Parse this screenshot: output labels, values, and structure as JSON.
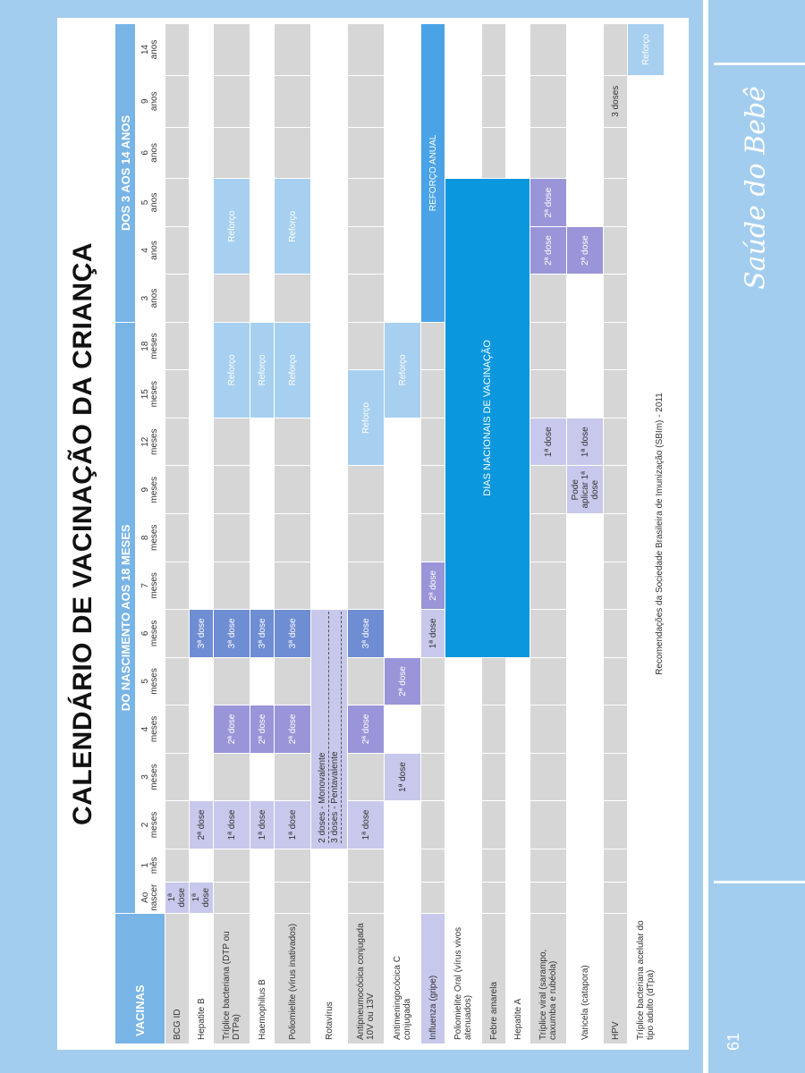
{
  "page": {
    "title": "CALENDÁRIO DE VACINAÇÃO DA CRIANÇA",
    "brand": "Saúde do Bebê",
    "page_number": "61",
    "credit": "Recomendações da Sociedade Brasileira de Imunização (SBIm) - 2011"
  },
  "headers": {
    "vacinas": "VACINAS",
    "birth_to_18": "DO NASCIMENTO AOS 18 MESES",
    "three_to_14": "DOS 3 AOS 14 ANOS"
  },
  "ages": [
    {
      "n": "Ao",
      "u": "nascer"
    },
    {
      "n": "1",
      "u": "mês"
    },
    {
      "n": "2",
      "u": "meses"
    },
    {
      "n": "3",
      "u": "meses"
    },
    {
      "n": "4",
      "u": "meses"
    },
    {
      "n": "5",
      "u": "meses"
    },
    {
      "n": "6",
      "u": "meses"
    },
    {
      "n": "7",
      "u": "meses"
    },
    {
      "n": "8",
      "u": "meses"
    },
    {
      "n": "9",
      "u": "meses"
    },
    {
      "n": "12",
      "u": "meses"
    },
    {
      "n": "15",
      "u": "meses"
    },
    {
      "n": "18",
      "u": "meses"
    },
    {
      "n": "3",
      "u": "anos"
    },
    {
      "n": "4",
      "u": "anos"
    },
    {
      "n": "5",
      "u": "anos"
    },
    {
      "n": "6",
      "u": "anos"
    },
    {
      "n": "9",
      "u": "anos"
    },
    {
      "n": "14",
      "u": "anos"
    }
  ],
  "vaccines": [
    "BCG ID",
    "Hepatite B",
    "Tríplice bacteriana (DTP ou DTPa)",
    "Haemophilus B",
    "Poliomielite (vírus inativados)",
    "Rotavírus",
    "Antipneumocócica conjugada 10V ou 13V",
    "Antimeningocócica C conjugada",
    "Influenza (gripe)",
    "Poliomielite Oral (vírus vivos atenuados)",
    "Febre amarela",
    "Hepatite A",
    "Tríplice viral (sarampo, caxumba e rubéola)",
    "Varicela (catapora)",
    "HPV",
    "Tríplice bacteriana acelular do tipo adulto (dTpa)"
  ],
  "labels": {
    "dose1": "1ª dose",
    "dose2": "2ª dose",
    "dose3": "3ª dose",
    "reforco": "Reforço",
    "rota_mono": "2 doses - Monovalente",
    "rota_penta": "3 doses - Pentavalente",
    "reforco_anual": "REFORÇO ANUAL",
    "dias_nacionais": "DIAS NACIONAIS DE VACINAÇÃO",
    "pode_aplicar": "Pode aplicar 1ª dose",
    "tres_doses": "3 doses"
  }
}
